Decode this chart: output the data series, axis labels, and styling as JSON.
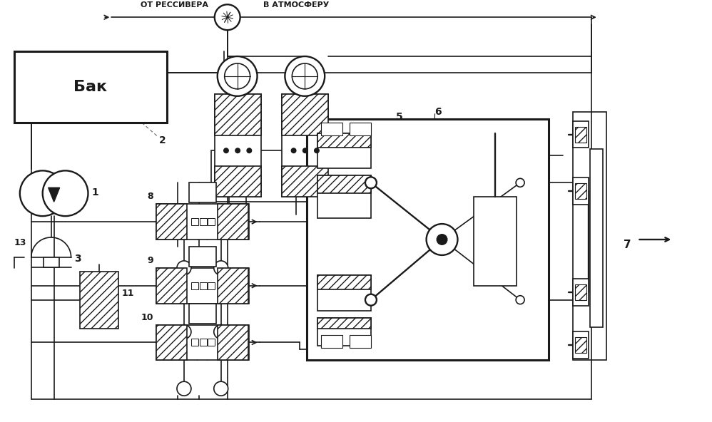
{
  "background_color": "#ffffff",
  "line_color": "#1a1a1a",
  "lw": 1.2,
  "tlw": 2.2,
  "top_label_left": "ОТ РЕССИВЕРА",
  "top_label_right": "В АТМОСФЕРУ",
  "bak_label": "Бак"
}
